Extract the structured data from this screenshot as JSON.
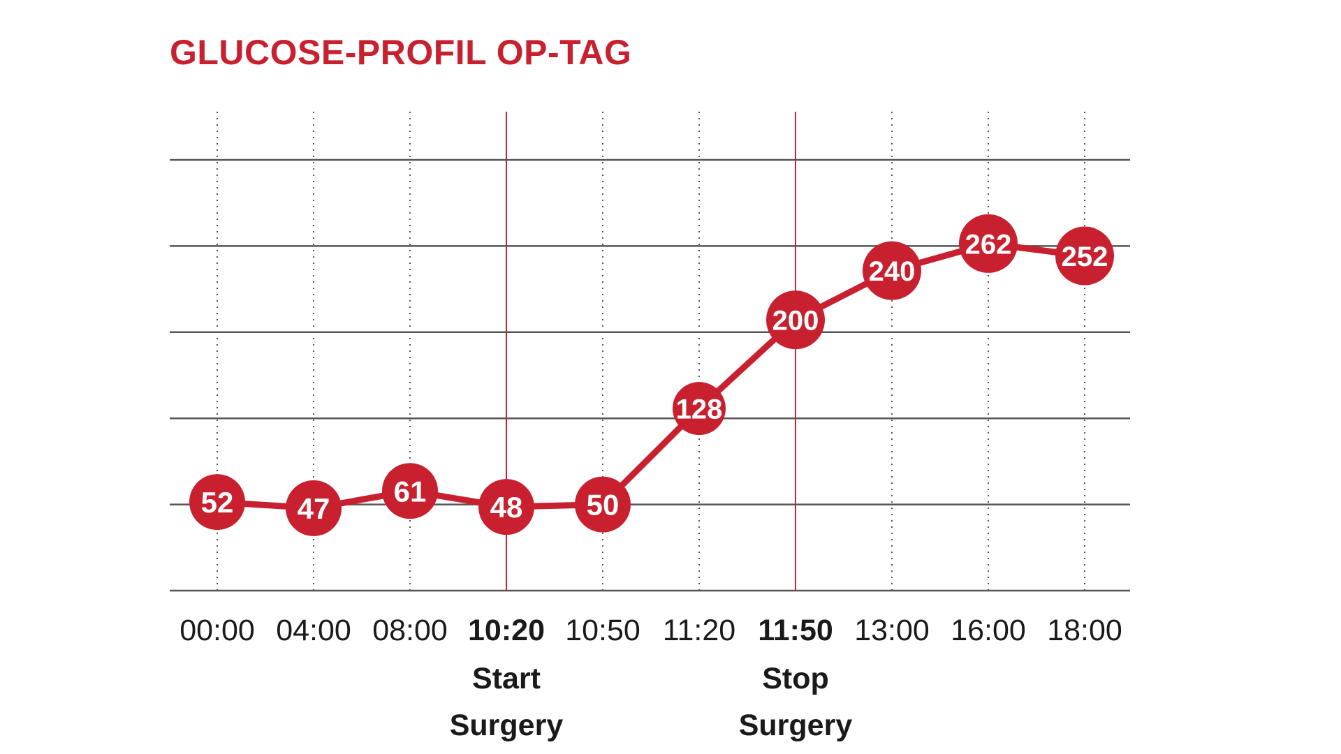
{
  "chart_data": {
    "type": "line",
    "title": "GLUCOSE-PROFIL OP-TAG",
    "xlabel": "",
    "ylabel": "",
    "categories": [
      "00:00",
      "04:00",
      "08:00",
      "10:20",
      "10:50",
      "11:20",
      "11:50",
      "13:00",
      "16:00",
      "18:00"
    ],
    "bold_categories": [
      "10:20",
      "11:50"
    ],
    "series": [
      {
        "values": [
          52,
          47,
          61,
          48,
          50,
          128,
          200,
          240,
          262,
          252
        ]
      }
    ],
    "events": [
      {
        "category": "10:20",
        "label_lines": [
          "Start",
          "Surgery"
        ]
      },
      {
        "category": "11:50",
        "label_lines": [
          "Stop",
          "Surgery"
        ]
      }
    ],
    "ylim": [
      -20,
      330
    ],
    "y_gridlines": [
      -20,
      50,
      120,
      190,
      260,
      330
    ],
    "grid": true,
    "colors": {
      "accent": "#c8202f",
      "gridline": "#555555",
      "text": "#1a1a1a"
    }
  }
}
